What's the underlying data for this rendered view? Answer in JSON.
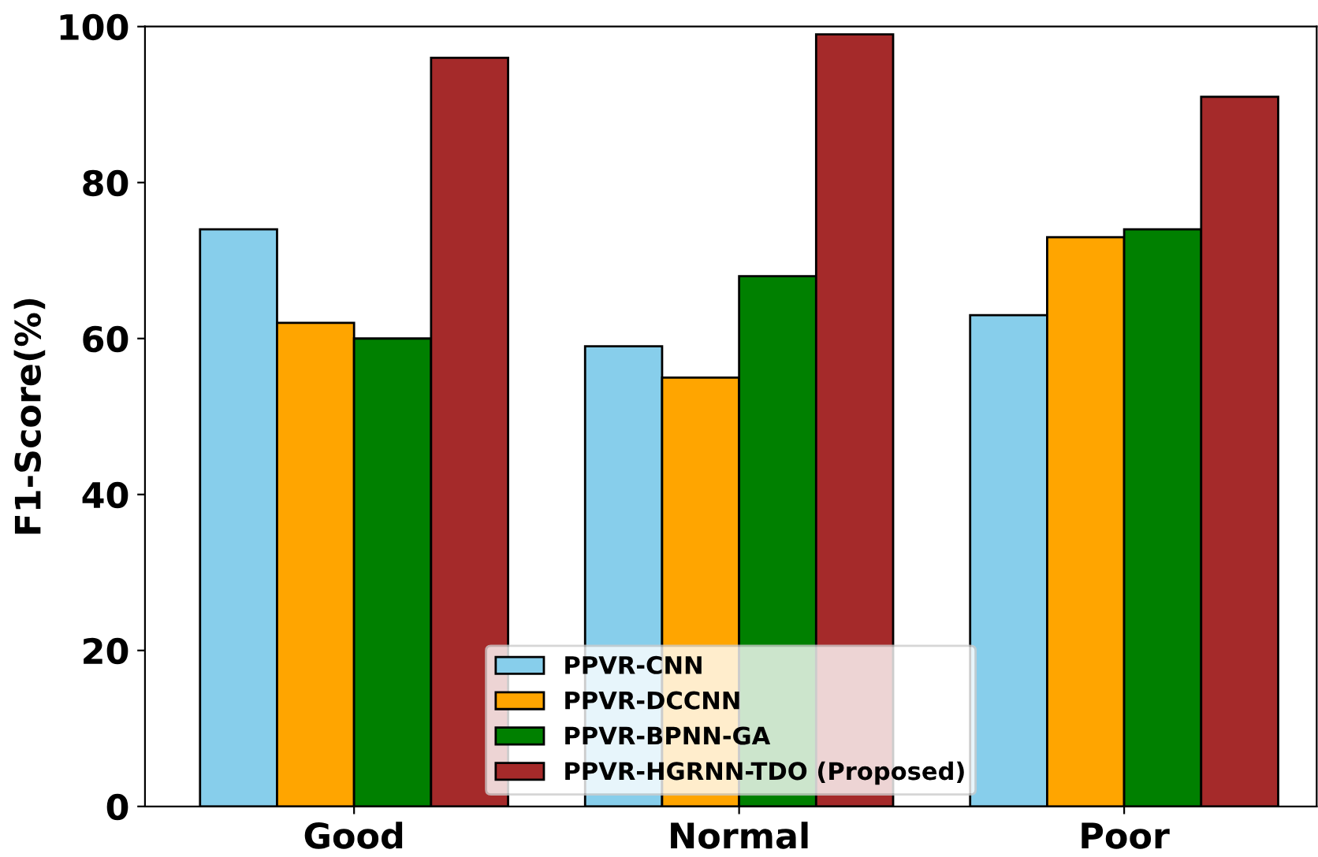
{
  "chart_data": {
    "type": "bar",
    "ylabel": "F1-Score(%)",
    "categories": [
      "Good",
      "Normal",
      "Poor"
    ],
    "series": [
      {
        "name": "PPVR-CNN",
        "color": "#87ceeb",
        "values": [
          74,
          59,
          63
        ]
      },
      {
        "name": "PPVR-DCCNN",
        "color": "#ffa500",
        "values": [
          62,
          55,
          73
        ]
      },
      {
        "name": "PPVR-BPNN-GA",
        "color": "#008000",
        "values": [
          60,
          68,
          74
        ]
      },
      {
        "name": "PPVR-HGRNN-TDO (Proposed)",
        "color": "#a52a2a",
        "values": [
          96,
          99,
          91
        ]
      }
    ],
    "ylim": [
      0,
      100
    ],
    "yticks": [
      0,
      20,
      40,
      60,
      80,
      100
    ],
    "grid": false,
    "legend": "bottom"
  }
}
